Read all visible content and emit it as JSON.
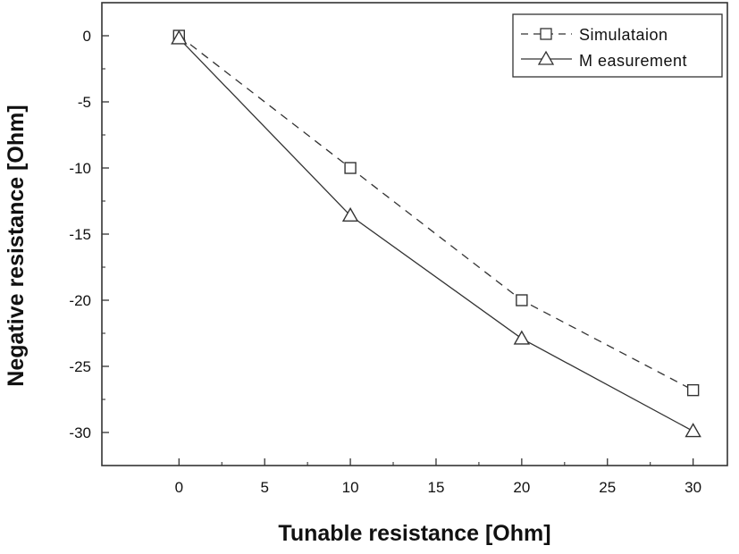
{
  "chart_data": {
    "type": "line",
    "title": "",
    "xlabel": "Tunable resistance [Ohm]",
    "ylabel": "Negative resistance [Ohm]",
    "xlim": [
      -4.5,
      32
    ],
    "ylim": [
      -32.5,
      2.5
    ],
    "xticks": [
      0,
      5,
      10,
      15,
      20,
      25,
      30
    ],
    "yticks": [
      0,
      -5,
      -10,
      -15,
      -20,
      -25,
      -30
    ],
    "grid": false,
    "legend": "top-right",
    "series": [
      {
        "name": "Simulataion",
        "marker": "square",
        "line_style": "dashed",
        "x": [
          0,
          10,
          20,
          30
        ],
        "y": [
          0,
          -10,
          -20,
          -26.8
        ]
      },
      {
        "name": "M easurement",
        "marker": "triangle",
        "line_style": "solid",
        "x": [
          0,
          10,
          20,
          30
        ],
        "y": [
          -0.2,
          -13.6,
          -22.9,
          -29.9
        ]
      }
    ]
  }
}
